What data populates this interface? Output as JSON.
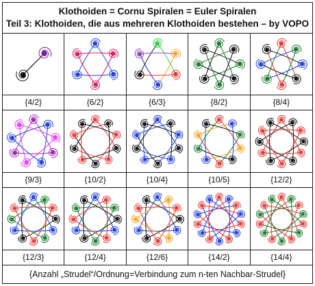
{
  "header": {
    "line1": "Klothoiden = Cornu Spiralen = Euler Spiralen",
    "line2": "Teil 3: Klothoiden, die aus mehreren Klothoiden bestehen – by VOPO"
  },
  "footer": {
    "text": "{Anzahl „Strudel“/Ordnung=Verbindung zum n-ten Nachbar-Strudel}"
  },
  "figures": [
    {
      "label": "{4/2}",
      "n": 2,
      "colors": [
        "#7a1fa2",
        "#111111"
      ]
    },
    {
      "label": "{6/2}",
      "n": 6,
      "colors": [
        "#1f3fe0",
        "#d81b60",
        "#1f3fe0",
        "#d81b60",
        "#1f3fe0",
        "#d81b60"
      ]
    },
    {
      "label": "{6/3}",
      "n": 6,
      "colors": [
        "#2ecc40",
        "#f5a623",
        "#e53935",
        "#1f3fe0",
        "#111111",
        "#8e44ad"
      ]
    },
    {
      "label": "{8/2}",
      "n": 8,
      "colors": [
        "#1b7a2b",
        "#111111",
        "#1b7a2b",
        "#111111",
        "#1b7a2b",
        "#111111",
        "#1b7a2b",
        "#111111"
      ]
    },
    {
      "label": "{8/4}",
      "n": 8,
      "colors": [
        "#e53935",
        "#1b7a2b",
        "#1f3fe0",
        "#111111",
        "#e53935",
        "#1b7a2b",
        "#1f3fe0",
        "#111111"
      ]
    },
    {
      "label": "{9/3}",
      "n": 9,
      "colors": [
        "#9b27b0",
        "#1f3fe0",
        "#e040fb",
        "#9b27b0",
        "#1f3fe0",
        "#e040fb",
        "#9b27b0",
        "#1f3fe0",
        "#e040fb"
      ]
    },
    {
      "label": "{10/2}",
      "n": 10,
      "colors": [
        "#e53935",
        "#111111",
        "#e53935",
        "#111111",
        "#e53935",
        "#111111",
        "#e53935",
        "#111111",
        "#e53935",
        "#111111"
      ]
    },
    {
      "label": "{10/4}",
      "n": 10,
      "colors": [
        "#1f3fe0",
        "#111111",
        "#1f3fe0",
        "#111111",
        "#1f3fe0",
        "#111111",
        "#1f3fe0",
        "#111111",
        "#1f3fe0",
        "#111111"
      ]
    },
    {
      "label": "{10/5}",
      "n": 10,
      "colors": [
        "#e53935",
        "#1f3fe0",
        "#1b7a2b",
        "#f5a623",
        "#111111",
        "#e53935",
        "#1f3fe0",
        "#1b7a2b",
        "#f5a623",
        "#111111"
      ]
    },
    {
      "label": "{12/2}",
      "n": 12,
      "colors": [
        "#e53935",
        "#111111",
        "#e53935",
        "#111111",
        "#e53935",
        "#111111",
        "#e53935",
        "#111111",
        "#e53935",
        "#111111",
        "#e53935",
        "#111111"
      ]
    },
    {
      "label": "{12/3}",
      "n": 12,
      "colors": [
        "#1f3fe0",
        "#1b7a2b",
        "#e53935",
        "#111111",
        "#1f3fe0",
        "#1b7a2b",
        "#e53935",
        "#111111",
        "#1f3fe0",
        "#1b7a2b",
        "#e53935",
        "#111111"
      ]
    },
    {
      "label": "{12/4}",
      "n": 12,
      "colors": [
        "#1f3fe0",
        "#e53935",
        "#1b7a2b",
        "#111111",
        "#1f3fe0",
        "#e53935",
        "#1b7a2b",
        "#111111",
        "#1f3fe0",
        "#e53935",
        "#1b7a2b",
        "#111111"
      ]
    },
    {
      "label": "{12/6}",
      "n": 12,
      "colors": [
        "#1f3fe0",
        "#f5a623",
        "#e53935",
        "#111111",
        "#1f3fe0",
        "#f5a623",
        "#e53935",
        "#111111",
        "#1f3fe0",
        "#f5a623",
        "#e53935",
        "#111111"
      ]
    },
    {
      "label": "{14/2}",
      "n": 14,
      "colors": [
        "#e53935",
        "#1f3fe0",
        "#e53935",
        "#1f3fe0",
        "#e53935",
        "#1f3fe0",
        "#e53935",
        "#1f3fe0",
        "#e53935",
        "#1f3fe0",
        "#e53935",
        "#1f3fe0",
        "#e53935",
        "#1f3fe0"
      ]
    },
    {
      "label": "{14/4}",
      "n": 14,
      "colors": [
        "#e53935",
        "#1b7a2b",
        "#e53935",
        "#1b7a2b",
        "#e53935",
        "#1b7a2b",
        "#e53935",
        "#1b7a2b",
        "#e53935",
        "#1b7a2b",
        "#e53935",
        "#1b7a2b",
        "#e53935",
        "#1b7a2b"
      ]
    }
  ]
}
